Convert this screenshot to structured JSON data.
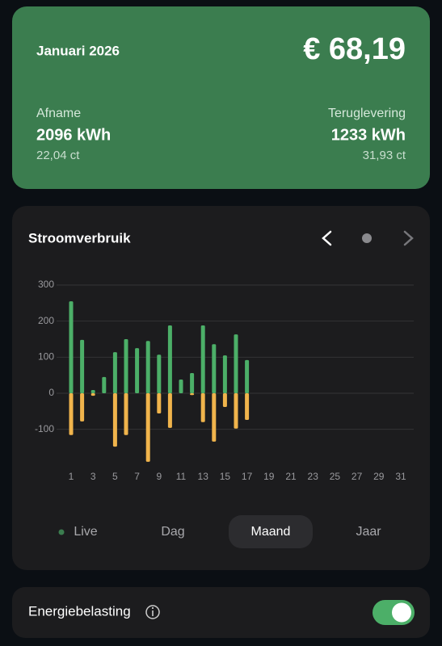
{
  "header": {
    "month": "Januari 2026",
    "total": "€ 68,19",
    "afname": {
      "label": "Afname",
      "value": "2096 kWh",
      "price": "22,04 ct"
    },
    "teruglevering": {
      "label": "Teruglevering",
      "value": "1233 kWh",
      "price": "31,93 ct"
    }
  },
  "chart_card": {
    "title": "Stroomverbruik"
  },
  "chart_data": {
    "type": "bar",
    "categories": [
      1,
      null,
      3,
      null,
      5,
      null,
      7,
      null,
      9,
      null,
      11,
      null,
      13,
      null,
      15,
      null,
      17,
      null,
      19,
      null,
      21,
      null,
      23,
      null,
      25,
      null,
      27,
      null,
      29,
      null,
      31
    ],
    "series": [
      {
        "color": "#4caf68",
        "values": [
          255,
          148,
          9,
          45,
          114,
          150,
          125,
          145,
          107,
          188,
          38,
          56,
          188,
          136,
          105,
          163,
          92,
          null,
          null,
          null,
          null,
          null,
          null,
          null,
          null,
          null,
          null,
          null,
          null,
          null,
          null
        ]
      },
      {
        "color": "#f0b44c",
        "values": [
          -116,
          -78,
          -7,
          0,
          -148,
          -116,
          0,
          -190,
          -56,
          -96,
          0,
          -5,
          -80,
          -134,
          -38,
          -98,
          -74,
          null,
          null,
          null,
          null,
          null,
          null,
          null,
          null,
          null,
          null,
          null,
          null,
          null,
          null
        ]
      }
    ],
    "ylim": [
      -200,
      300
    ],
    "yticks": [
      -100,
      0,
      100,
      200,
      300
    ],
    "grid": true
  },
  "tabs": [
    "Live",
    "Dag",
    "Maand",
    "Jaar"
  ],
  "selected_tab": 2,
  "setting": {
    "label": "Energiebelasting",
    "enabled": true
  }
}
